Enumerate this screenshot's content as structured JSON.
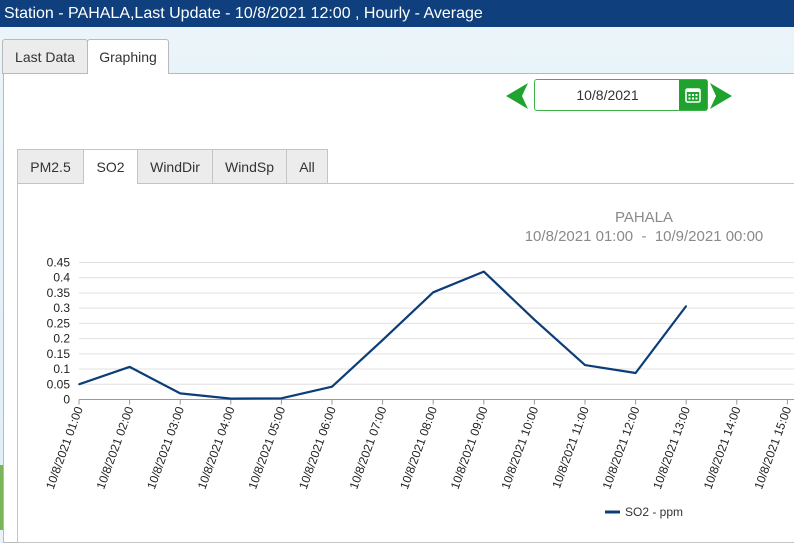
{
  "window": {
    "title": "Station - PAHALA,Last Update - 10/8/2021 12:00 , Hourly - Average"
  },
  "outer_tabs": [
    {
      "label": "Last Data",
      "active": false
    },
    {
      "label": "Graphing",
      "active": true
    }
  ],
  "date_picker": {
    "value": "10/8/2021",
    "prev_icon": "arrow-left-icon",
    "next_icon": "arrow-right-icon",
    "calendar_icon": "calendar-icon",
    "accent_color": "#1fa32e"
  },
  "inner_tabs": [
    {
      "label": "PM2.5",
      "active": false
    },
    {
      "label": "SO2",
      "active": true
    },
    {
      "label": "WindDir",
      "active": false
    },
    {
      "label": "WindSp",
      "active": false
    },
    {
      "label": "All",
      "active": false
    }
  ],
  "chart_data": {
    "type": "line",
    "title": "PAHALA",
    "subtitle": "10/8/2021 01:00  -  10/9/2021 00:00",
    "categories": [
      "10/8/2021 01:00",
      "10/8/2021 02:00",
      "10/8/2021 03:00",
      "10/8/2021 04:00",
      "10/8/2021 05:00",
      "10/8/2021 06:00",
      "10/8/2021 07:00",
      "10/8/2021 08:00",
      "10/8/2021 09:00",
      "10/8/2021 10:00",
      "10/8/2021 11:00",
      "10/8/2021 12:00",
      "10/8/2021 13:00",
      "10/8/2021 14:00",
      "10/8/2021 15:00"
    ],
    "series": [
      {
        "name": "SO2 - ppm",
        "color": "#0b3d78",
        "values": [
          0.05,
          0.107,
          0.02,
          0.003,
          0.004,
          0.042,
          0.195,
          0.352,
          0.42,
          0.262,
          0.113,
          0.087,
          0.307,
          null,
          null
        ]
      }
    ],
    "yticks": [
      "0",
      "0.05",
      "0.1",
      "0.15",
      "0.2",
      "0.25",
      "0.3",
      "0.35",
      "0.4",
      "0.45"
    ],
    "ylim": [
      0,
      0.45
    ],
    "grid": true,
    "legend_position": "bottom-right"
  }
}
